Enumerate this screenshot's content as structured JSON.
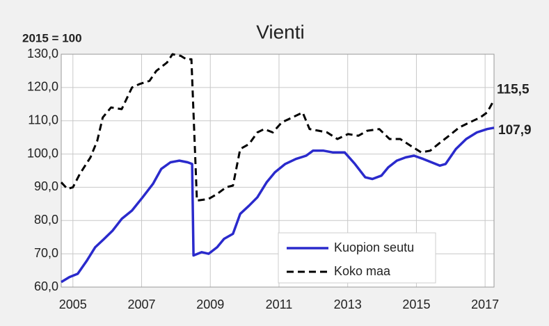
{
  "chart_data": {
    "type": "line",
    "title": "Vienti",
    "annotation": "2015 = 100",
    "xlim": [
      2004.66,
      2017.26
    ],
    "xticks": [
      2005,
      2007,
      2009,
      2011,
      2013,
      2015,
      2017
    ],
    "ylim": [
      60,
      130
    ],
    "yticks": [
      {
        "value": 60,
        "label": "60,0"
      },
      {
        "value": 70,
        "label": "70,0"
      },
      {
        "value": 80,
        "label": "80,0"
      },
      {
        "value": 90,
        "label": "90,0"
      },
      {
        "value": 100,
        "label": "100,0"
      },
      {
        "value": 110,
        "label": "110,0"
      },
      {
        "value": 120,
        "label": "120,0"
      },
      {
        "value": 130,
        "label": "130,0"
      }
    ],
    "grid": true,
    "legend": "lower right",
    "series": [
      {
        "name": "Kuopion seutu",
        "color": "#2a2acc",
        "dash": false,
        "x": [
          2004.66,
          2004.9,
          2005.14,
          2005.41,
          2005.65,
          2005.91,
          2006.16,
          2006.42,
          2006.72,
          2007.03,
          2007.33,
          2007.57,
          2007.84,
          2008.1,
          2008.34,
          2008.47,
          2008.51,
          2008.75,
          2008.95,
          2009.2,
          2009.4,
          2009.66,
          2009.87,
          2010.13,
          2010.37,
          2010.64,
          2010.88,
          2011.18,
          2011.49,
          2011.79,
          2011.99,
          2012.3,
          2012.56,
          2012.91,
          2013.21,
          2013.51,
          2013.72,
          2013.98,
          2014.18,
          2014.43,
          2014.69,
          2014.93,
          2015.2,
          2015.44,
          2015.68,
          2015.85,
          2016.15,
          2016.45,
          2016.76,
          2017.06,
          2017.26
        ],
        "values": [
          61.5,
          63,
          64,
          68,
          72,
          74.5,
          77,
          80.5,
          83,
          87,
          91,
          95.5,
          97.5,
          98,
          97.5,
          97,
          69.5,
          70.5,
          70,
          72,
          74.5,
          76,
          82,
          84.5,
          87,
          91.5,
          94.5,
          97,
          98.5,
          99.5,
          101,
          101,
          100.5,
          100.5,
          97,
          93,
          92.5,
          93.5,
          96,
          98,
          99,
          99.5,
          98.5,
          97.5,
          96.5,
          97,
          101.5,
          104.5,
          106.5,
          107.5,
          107.9
        ],
        "value_labels": [
          null,
          null,
          null,
          null,
          null,
          null,
          null,
          null,
          null,
          null,
          null,
          null,
          null,
          null,
          null,
          null,
          null,
          null,
          null,
          null,
          null,
          null,
          null,
          null,
          null,
          null,
          null,
          null,
          null,
          null,
          null,
          null,
          null,
          null,
          null,
          null,
          null,
          null,
          null,
          null,
          null,
          null,
          null,
          null,
          null,
          null,
          null,
          null,
          null,
          null,
          "107,9"
        ]
      },
      {
        "name": "Koko maa",
        "color": "#000000",
        "dash": true,
        "x": [
          2004.66,
          2004.84,
          2005,
          2005.2,
          2005.51,
          2005.71,
          2005.87,
          2006.11,
          2006.42,
          2006.72,
          2006.93,
          2007.23,
          2007.43,
          2007.74,
          2007.9,
          2008.14,
          2008.3,
          2008.45,
          2008.61,
          2008.95,
          2009.2,
          2009.46,
          2009.66,
          2009.87,
          2010.13,
          2010.37,
          2010.57,
          2010.82,
          2011.08,
          2011.39,
          2011.69,
          2011.89,
          2012.16,
          2012.4,
          2012.7,
          2013.01,
          2013.31,
          2013.57,
          2013.92,
          2014.22,
          2014.53,
          2014.83,
          2015.14,
          2015.4,
          2015.64,
          2015.95,
          2016.25,
          2016.55,
          2016.86,
          2017.06,
          2017.22
        ],
        "values": [
          91.5,
          89.5,
          90,
          94,
          99,
          104,
          111,
          114,
          113.5,
          120,
          121,
          122,
          125,
          127.5,
          130,
          129.5,
          128.5,
          128.5,
          86,
          86.5,
          88,
          90,
          90.5,
          101.5,
          103,
          106.5,
          107.5,
          106.5,
          109.5,
          111,
          112.5,
          107.5,
          107,
          106.5,
          104.5,
          106,
          105.5,
          107,
          107.5,
          104.5,
          104.5,
          102.5,
          100.5,
          101,
          103,
          105.5,
          108,
          109.5,
          111,
          112.5,
          115.5
        ],
        "value_labels": [
          null,
          null,
          null,
          null,
          null,
          null,
          null,
          null,
          null,
          null,
          null,
          null,
          null,
          null,
          null,
          null,
          null,
          null,
          null,
          null,
          null,
          null,
          null,
          null,
          null,
          null,
          null,
          null,
          null,
          null,
          null,
          null,
          null,
          null,
          null,
          null,
          null,
          null,
          null,
          null,
          null,
          null,
          null,
          null,
          null,
          null,
          null,
          null,
          null,
          null,
          "115,5"
        ]
      }
    ]
  }
}
